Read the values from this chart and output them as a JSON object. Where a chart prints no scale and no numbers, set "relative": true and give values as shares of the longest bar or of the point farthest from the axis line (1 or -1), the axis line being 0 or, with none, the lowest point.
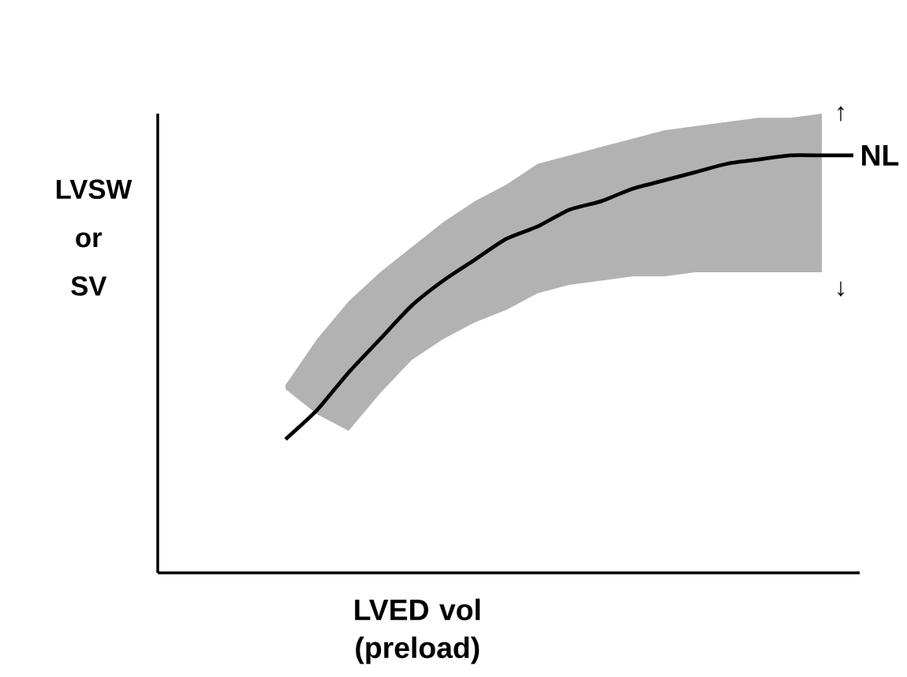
{
  "chart_data": {
    "type": "line",
    "relative": true,
    "xlabel": "LVED vol (preload)",
    "ylabel": "LVSW or SV",
    "categories": [
      null,
      null,
      null,
      null,
      null,
      null,
      null,
      null,
      null,
      null,
      null,
      null,
      null,
      null,
      null,
      null,
      null,
      null,
      null
    ],
    "series": [
      {
        "name": "NL",
        "color": "#000000",
        "values": [
          0.32,
          0.39,
          0.48,
          0.56,
          0.64,
          0.7,
          0.75,
          0.8,
          0.83,
          0.87,
          0.89,
          0.92,
          0.94,
          0.96,
          0.98,
          0.99,
          1.0,
          1.0,
          1.0
        ],
        "upper": [
          0.45,
          0.56,
          0.65,
          0.72,
          0.78,
          0.84,
          0.89,
          0.93,
          0.98,
          1.0,
          1.02,
          1.04,
          1.06,
          1.07,
          1.08,
          1.09,
          1.09,
          1.1,
          null
        ],
        "lower": [
          0.44,
          0.38,
          0.34,
          0.43,
          0.51,
          0.56,
          0.6,
          0.63,
          0.67,
          0.69,
          0.7,
          0.71,
          0.71,
          0.72,
          0.72,
          0.72,
          0.72,
          0.72,
          null
        ]
      }
    ],
    "annotations": [
      "↑",
      "↓"
    ],
    "legend": false,
    "marker": "none",
    "line_style": "solid"
  }
}
